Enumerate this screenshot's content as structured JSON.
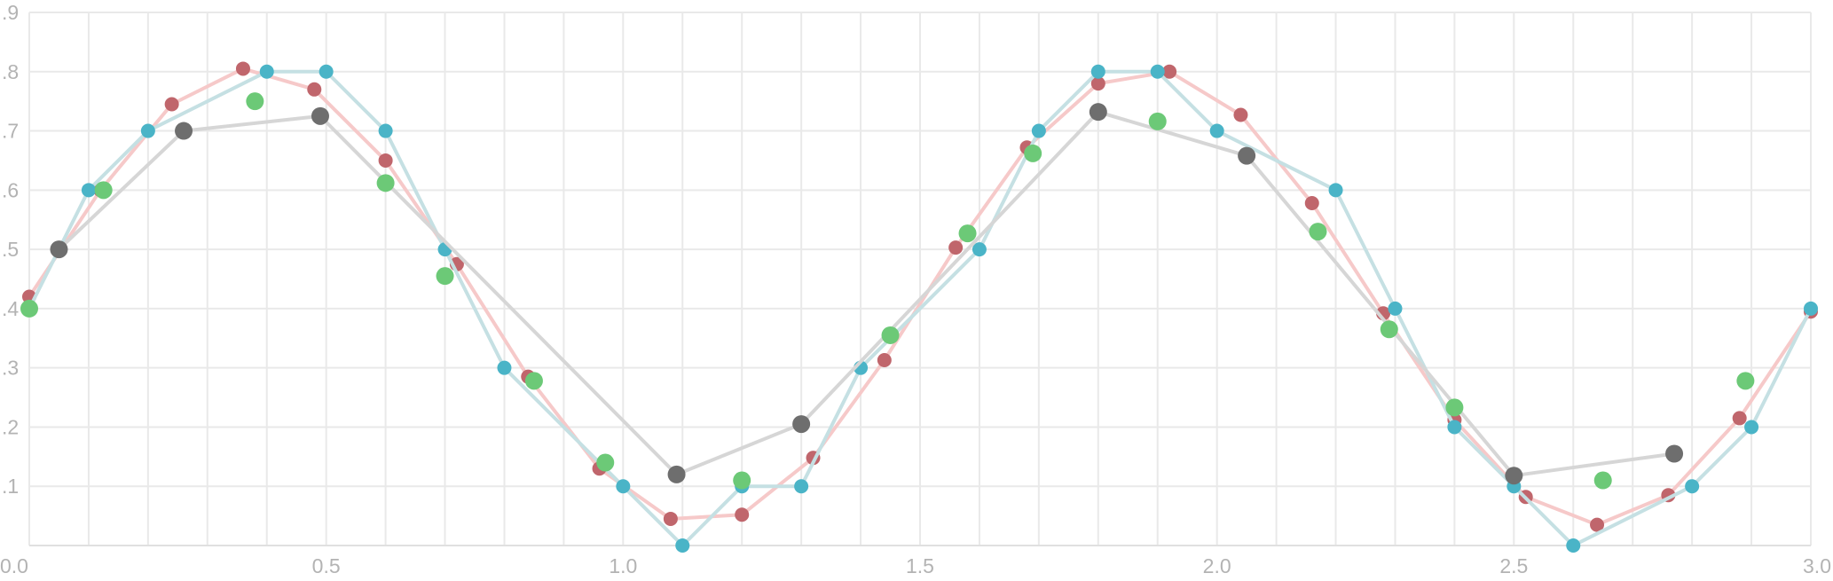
{
  "chart_data": {
    "type": "line",
    "title": "",
    "xlabel": "",
    "ylabel": "",
    "xlim": [
      0.0,
      3.0
    ],
    "ylim": [
      0.0,
      0.9
    ],
    "grid": true,
    "legend": "none",
    "x_ticks": [
      {
        "value": 0.0,
        "label": "0.0"
      },
      {
        "value": 0.5,
        "label": "0.5"
      },
      {
        "value": 1.0,
        "label": "1.0"
      },
      {
        "value": 1.5,
        "label": "1.5"
      },
      {
        "value": 2.0,
        "label": "2.0"
      },
      {
        "value": 2.5,
        "label": "2.5"
      },
      {
        "value": 3.0,
        "label": "3.0"
      }
    ],
    "x_minor_step": 0.1,
    "y_ticks": [
      {
        "value": 0.1,
        "label": ".1"
      },
      {
        "value": 0.2,
        "label": ".2"
      },
      {
        "value": 0.3,
        "label": ".3"
      },
      {
        "value": 0.4,
        "label": ".4"
      },
      {
        "value": 0.5,
        "label": ".5"
      },
      {
        "value": 0.6,
        "label": ".6"
      },
      {
        "value": 0.7,
        "label": ".7"
      },
      {
        "value": 0.8,
        "label": ".8"
      },
      {
        "value": 0.9,
        "label": ".9"
      }
    ],
    "series": [
      {
        "line_color": "#f6c9c9",
        "marker_color": "#c0666c",
        "marker_size": 8,
        "points": [
          [
            0.0,
            0.42
          ],
          [
            0.12,
            0.6
          ],
          [
            0.24,
            0.745
          ],
          [
            0.36,
            0.805
          ],
          [
            0.48,
            0.77
          ],
          [
            0.6,
            0.65
          ],
          [
            0.72,
            0.475
          ],
          [
            0.84,
            0.285
          ],
          [
            0.96,
            0.13
          ],
          [
            1.08,
            0.045
          ],
          [
            1.2,
            0.052
          ],
          [
            1.32,
            0.148
          ],
          [
            1.44,
            0.313
          ],
          [
            1.56,
            0.503
          ],
          [
            1.68,
            0.672
          ],
          [
            1.8,
            0.78
          ],
          [
            1.92,
            0.8
          ],
          [
            2.04,
            0.727
          ],
          [
            2.16,
            0.578
          ],
          [
            2.28,
            0.392
          ],
          [
            2.4,
            0.212
          ],
          [
            2.52,
            0.082
          ],
          [
            2.64,
            0.035
          ],
          [
            2.76,
            0.085
          ],
          [
            2.88,
            0.215
          ],
          [
            3.0,
            0.395
          ]
        ]
      },
      {
        "line_color": "#c5e0e3",
        "marker_color": "#4ab4c7",
        "marker_size": 8,
        "points": [
          [
            0.0,
            0.4
          ],
          [
            0.1,
            0.6
          ],
          [
            0.2,
            0.7
          ],
          [
            0.4,
            0.8
          ],
          [
            0.5,
            0.8
          ],
          [
            0.6,
            0.7
          ],
          [
            0.7,
            0.5
          ],
          [
            0.8,
            0.3
          ],
          [
            1.0,
            0.1
          ],
          [
            1.1,
            0.0
          ],
          [
            1.2,
            0.1
          ],
          [
            1.3,
            0.1
          ],
          [
            1.4,
            0.3
          ],
          [
            1.6,
            0.5
          ],
          [
            1.7,
            0.7
          ],
          [
            1.8,
            0.8
          ],
          [
            1.9,
            0.8
          ],
          [
            2.0,
            0.7
          ],
          [
            2.2,
            0.6
          ],
          [
            2.3,
            0.4
          ],
          [
            2.4,
            0.2
          ],
          [
            2.5,
            0.1
          ],
          [
            2.6,
            0.0
          ],
          [
            2.8,
            0.1
          ],
          [
            2.9,
            0.2
          ],
          [
            3.0,
            0.4
          ]
        ]
      },
      {
        "line_color": "#d6d6d6",
        "marker_color": "#6e6e6e",
        "marker_size": 10,
        "points": [
          [
            0.05,
            0.5
          ],
          [
            0.26,
            0.7
          ],
          [
            0.49,
            0.725
          ],
          [
            1.09,
            0.12
          ],
          [
            1.3,
            0.205
          ],
          [
            1.8,
            0.732
          ],
          [
            2.05,
            0.658
          ],
          [
            2.5,
            0.118
          ],
          [
            2.77,
            0.155
          ]
        ]
      },
      {
        "line_color": "none",
        "marker_color": "#6cc977",
        "marker_size": 10,
        "points": [
          [
            0.0,
            0.4
          ],
          [
            0.125,
            0.6
          ],
          [
            0.38,
            0.75
          ],
          [
            0.6,
            0.612
          ],
          [
            0.7,
            0.455
          ],
          [
            0.85,
            0.278
          ],
          [
            0.97,
            0.14
          ],
          [
            1.2,
            0.11
          ],
          [
            1.45,
            0.355
          ],
          [
            1.58,
            0.527
          ],
          [
            1.69,
            0.662
          ],
          [
            1.9,
            0.716
          ],
          [
            2.17,
            0.53
          ],
          [
            2.29,
            0.365
          ],
          [
            2.4,
            0.233
          ],
          [
            2.65,
            0.11
          ],
          [
            2.89,
            0.278
          ]
        ]
      }
    ]
  }
}
